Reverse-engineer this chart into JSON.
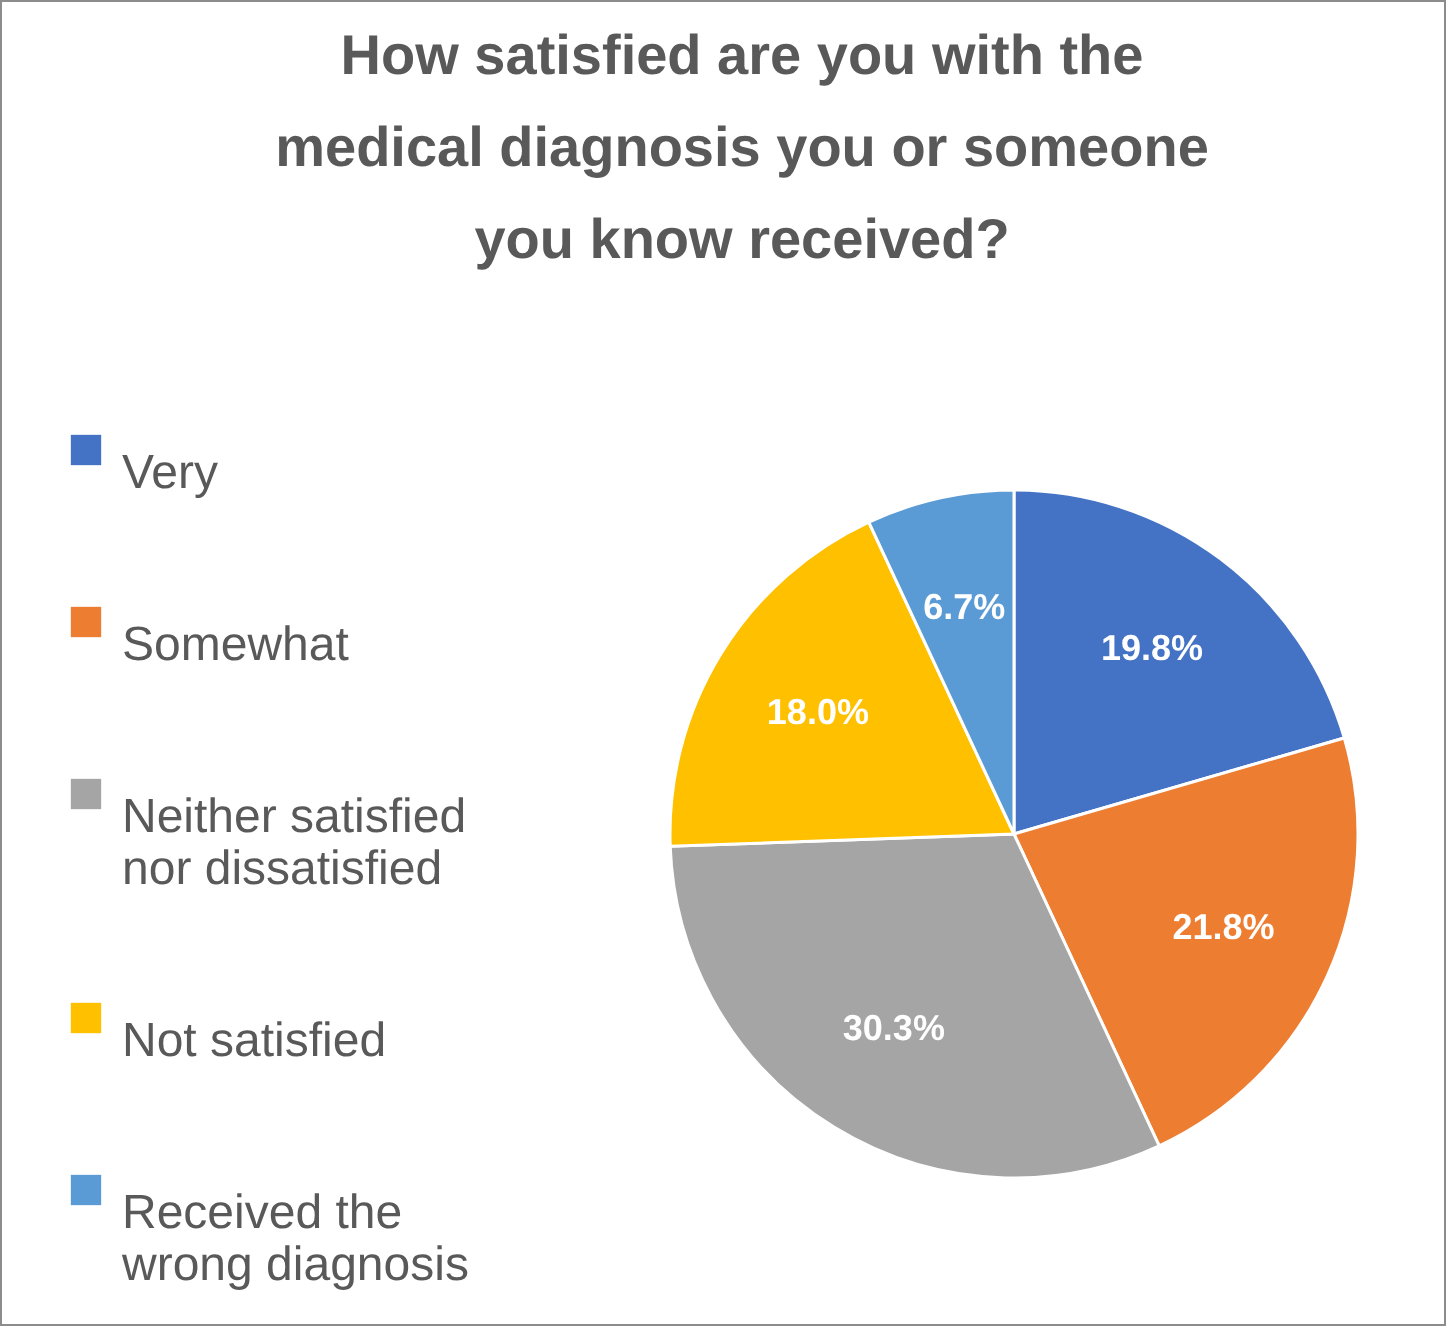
{
  "chart_data": {
    "type": "pie",
    "title": "How satisfied are you with the medical diagnosis you or someone you know received?",
    "categories": [
      "Very",
      "Somewhat",
      "Neither satisfied nor dissatisfied",
      "Not satisfied",
      "Received the wrong diagnosis"
    ],
    "values": [
      19.8,
      21.8,
      30.3,
      18.0,
      6.7
    ],
    "value_labels": [
      "19.8%",
      "21.8%",
      "30.3%",
      "18.0%",
      "6.7%"
    ],
    "colors": [
      "#4472c4",
      "#ed7d31",
      "#a5a5a5",
      "#ffc000",
      "#5b9bd5"
    ],
    "legend": "left"
  }
}
